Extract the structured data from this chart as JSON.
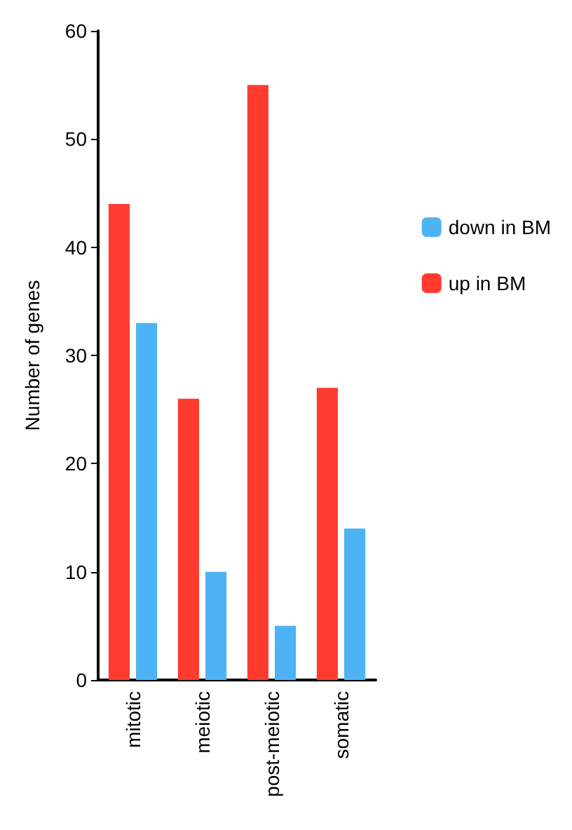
{
  "chart_data": {
    "type": "bar",
    "ylabel": "Number of genes",
    "categories": [
      "mitotic",
      "meiotic",
      "post-meiotic",
      "somatic"
    ],
    "series": [
      {
        "name": "up in BM",
        "color": "#ff3b30",
        "values": [
          44,
          26,
          55,
          27
        ]
      },
      {
        "name": "down in BM",
        "color": "#4db3f5",
        "values": [
          33,
          10,
          5,
          14
        ]
      }
    ],
    "ylim": [
      0,
      60
    ],
    "yticks": [
      0,
      10,
      20,
      30,
      40,
      50,
      60
    ],
    "grid": false,
    "legend": "right"
  }
}
